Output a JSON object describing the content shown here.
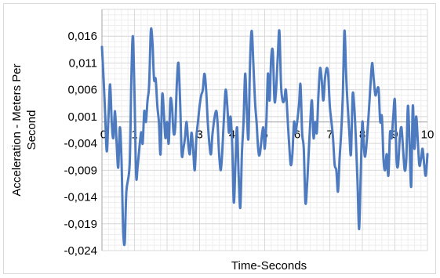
{
  "chart_data": {
    "type": "line",
    "title": "",
    "xlabel": "Time-Seconds",
    "ylabel": "Acceleration - Meters Per Second",
    "xlim": [
      0,
      10
    ],
    "ylim": [
      -0.024,
      0.021
    ],
    "grid": true,
    "colors": {
      "line": "#4e7bbf",
      "grid": "#d9d9d9",
      "minor_grid": "#eeeeee",
      "axis": "#a6a6a6"
    },
    "x_ticks": [
      "0",
      "1",
      "2",
      "3",
      "4",
      "5",
      "6",
      "7",
      "8",
      "9",
      "10"
    ],
    "y_ticks": [
      "0,016",
      "0,011",
      "0,006",
      "0,001",
      "-0,004",
      "-0,009",
      "-0,014",
      "-0,019",
      "-0,024"
    ],
    "y_tick_values": [
      0.016,
      0.011,
      0.006,
      0.001,
      -0.004,
      -0.009,
      -0.014,
      -0.019,
      -0.024
    ],
    "series": [
      {
        "values": [
          [
            0.0,
            0.014
          ],
          [
            0.05,
            0.008
          ],
          [
            0.1,
            0.001
          ],
          [
            0.15,
            -0.0055
          ],
          [
            0.2,
            0.001
          ],
          [
            0.25,
            0.007
          ],
          [
            0.3,
            0.0
          ],
          [
            0.35,
            -0.003
          ],
          [
            0.4,
            0.002
          ],
          [
            0.45,
            -0.004
          ],
          [
            0.5,
            -0.0085
          ],
          [
            0.55,
            -0.001
          ],
          [
            0.6,
            -0.007
          ],
          [
            0.65,
            -0.02
          ],
          [
            0.7,
            -0.0225
          ],
          [
            0.75,
            -0.013
          ],
          [
            0.85,
            -0.008
          ],
          [
            0.9,
            0.007
          ],
          [
            0.95,
            0.016
          ],
          [
            1.0,
            0.005
          ],
          [
            1.05,
            -0.01
          ],
          [
            1.1,
            -0.008
          ],
          [
            1.2,
            -0.002
          ],
          [
            1.25,
            -0.004
          ],
          [
            1.3,
            0.002
          ],
          [
            1.35,
            0.0
          ],
          [
            1.4,
            0.004
          ],
          [
            1.45,
            0.007
          ],
          [
            1.5,
            0.017
          ],
          [
            1.55,
            0.015
          ],
          [
            1.6,
            0.008
          ],
          [
            1.65,
            0.008
          ],
          [
            1.7,
            0.003
          ],
          [
            1.75,
            0.0
          ],
          [
            1.8,
            -0.006
          ],
          [
            1.85,
            0.005
          ],
          [
            1.9,
            0.002
          ],
          [
            1.95,
            -0.003
          ],
          [
            2.0,
            0.0
          ],
          [
            2.05,
            -0.004
          ],
          [
            2.1,
            0.004
          ],
          [
            2.15,
            0.003
          ],
          [
            2.2,
            -0.002
          ],
          [
            2.25,
            -0.001
          ],
          [
            2.3,
            0.007
          ],
          [
            2.35,
            0.011
          ],
          [
            2.4,
            0.004
          ],
          [
            2.45,
            -0.006
          ],
          [
            2.5,
            -0.005
          ],
          [
            2.55,
            -0.003
          ],
          [
            2.6,
            0.0
          ],
          [
            2.65,
            -0.004
          ],
          [
            2.7,
            -0.006
          ],
          [
            2.75,
            -0.002
          ],
          [
            2.8,
            -0.005
          ],
          [
            2.85,
            -0.009
          ],
          [
            2.9,
            -0.003
          ],
          [
            2.95,
            0.0
          ],
          [
            3.0,
            0.003
          ],
          [
            3.05,
            0.005
          ],
          [
            3.1,
            0.006
          ],
          [
            3.15,
            0.009
          ],
          [
            3.2,
            0.006
          ],
          [
            3.25,
            0.0
          ],
          [
            3.3,
            -0.004
          ],
          [
            3.35,
            -0.006
          ],
          [
            3.4,
            -0.002
          ],
          [
            3.5,
            0.002
          ],
          [
            3.55,
            0.0
          ],
          [
            3.6,
            -0.006
          ],
          [
            3.65,
            -0.009
          ],
          [
            3.7,
            -0.005
          ],
          [
            3.75,
            0.001
          ],
          [
            3.8,
            0.006
          ],
          [
            3.85,
            0.003
          ],
          [
            3.9,
            -0.002
          ],
          [
            3.95,
            0.001
          ],
          [
            4.0,
            -0.004
          ],
          [
            4.05,
            -0.015
          ],
          [
            4.1,
            -0.008
          ],
          [
            4.15,
            -0.001
          ],
          [
            4.2,
            -0.01
          ],
          [
            4.25,
            -0.016
          ],
          [
            4.3,
            -0.006
          ],
          [
            4.35,
            0.0
          ],
          [
            4.4,
            0.009
          ],
          [
            4.45,
            0.002
          ],
          [
            4.5,
            -0.003
          ],
          [
            4.55,
            0.011
          ],
          [
            4.6,
            0.017
          ],
          [
            4.65,
            0.011
          ],
          [
            4.7,
            0.004
          ],
          [
            4.75,
            0.0
          ],
          [
            4.8,
            -0.005
          ],
          [
            4.85,
            -0.006
          ],
          [
            4.95,
            -0.001
          ],
          [
            5.0,
            -0.005
          ],
          [
            5.05,
            0.0
          ],
          [
            5.1,
            0.009
          ],
          [
            5.15,
            0.004
          ],
          [
            5.2,
            0.012
          ],
          [
            5.25,
            0.013
          ],
          [
            5.3,
            0.004
          ],
          [
            5.35,
            0.006
          ],
          [
            5.4,
            0.012
          ],
          [
            5.45,
            0.017
          ],
          [
            5.5,
            0.007
          ],
          [
            5.55,
            0.004
          ],
          [
            5.6,
            0.004
          ],
          [
            5.65,
            0.006
          ],
          [
            5.7,
            0.001
          ],
          [
            5.75,
            -0.004
          ],
          [
            5.8,
            -0.008
          ],
          [
            5.85,
            -0.006
          ],
          [
            5.9,
            0.0
          ],
          [
            5.95,
            -0.002
          ],
          [
            6.05,
            0.003
          ],
          [
            6.1,
            0.007
          ],
          [
            6.15,
            -0.002
          ],
          [
            6.2,
            -0.005
          ],
          [
            6.25,
            -0.015
          ],
          [
            6.3,
            -0.012
          ],
          [
            6.35,
            -0.006
          ],
          [
            6.4,
            0.0
          ],
          [
            6.45,
            0.004
          ],
          [
            6.5,
            -0.003
          ],
          [
            6.55,
            0.0
          ],
          [
            6.6,
            -0.002
          ],
          [
            6.65,
            0.005
          ],
          [
            6.7,
            0.01
          ],
          [
            6.75,
            0.008
          ],
          [
            6.8,
            0.004
          ],
          [
            6.85,
            0.008
          ],
          [
            6.9,
            0.01
          ],
          [
            6.95,
            0.009
          ],
          [
            7.0,
            0.003
          ],
          [
            7.05,
            0.0
          ],
          [
            7.1,
            -0.003
          ],
          [
            7.15,
            -0.008
          ],
          [
            7.2,
            -0.009
          ],
          [
            7.25,
            -0.013
          ],
          [
            7.3,
            -0.007
          ],
          [
            7.35,
            -0.002
          ],
          [
            7.4,
            0.005
          ],
          [
            7.45,
            0.017
          ],
          [
            7.5,
            0.009
          ],
          [
            7.55,
            0.003
          ],
          [
            7.6,
            -0.002
          ],
          [
            7.65,
            -0.006
          ],
          [
            7.7,
            0.005
          ],
          [
            7.75,
            0.003
          ],
          [
            7.8,
            -0.003
          ],
          [
            7.85,
            -0.011
          ],
          [
            7.9,
            -0.02
          ],
          [
            7.95,
            -0.01
          ],
          [
            8.0,
            0.0
          ],
          [
            8.05,
            -0.005
          ],
          [
            8.1,
            -0.006
          ],
          [
            8.2,
            0.002
          ],
          [
            8.25,
            0.007
          ],
          [
            8.3,
            0.011
          ],
          [
            8.35,
            0.008
          ],
          [
            8.4,
            0.005
          ],
          [
            8.45,
            0.006
          ],
          [
            8.5,
            0.006
          ],
          [
            8.55,
            0.0
          ],
          [
            8.6,
            0.001
          ],
          [
            8.65,
            -0.007
          ],
          [
            8.7,
            -0.009
          ],
          [
            8.75,
            -0.006
          ],
          [
            8.8,
            -0.01
          ],
          [
            8.85,
            -0.002
          ],
          [
            8.9,
            -0.003
          ],
          [
            8.95,
            0.001
          ],
          [
            9.0,
            0.004
          ],
          [
            9.05,
            -0.007
          ],
          [
            9.1,
            -0.008
          ],
          [
            9.15,
            -0.003
          ],
          [
            9.2,
            -0.001
          ],
          [
            9.25,
            -0.005
          ],
          [
            9.3,
            -0.009
          ],
          [
            9.35,
            -0.007
          ],
          [
            9.4,
            0.003
          ],
          [
            9.45,
            -0.004
          ],
          [
            9.5,
            -0.012
          ],
          [
            9.55,
            0.003
          ],
          [
            9.6,
            -0.005
          ],
          [
            9.65,
            0.001
          ],
          [
            9.7,
            -0.003
          ],
          [
            9.75,
            -0.008
          ],
          [
            9.8,
            -0.007
          ],
          [
            9.85,
            -0.005
          ],
          [
            9.9,
            -0.008
          ],
          [
            9.95,
            -0.01
          ],
          [
            10.0,
            -0.006
          ]
        ]
      }
    ]
  }
}
